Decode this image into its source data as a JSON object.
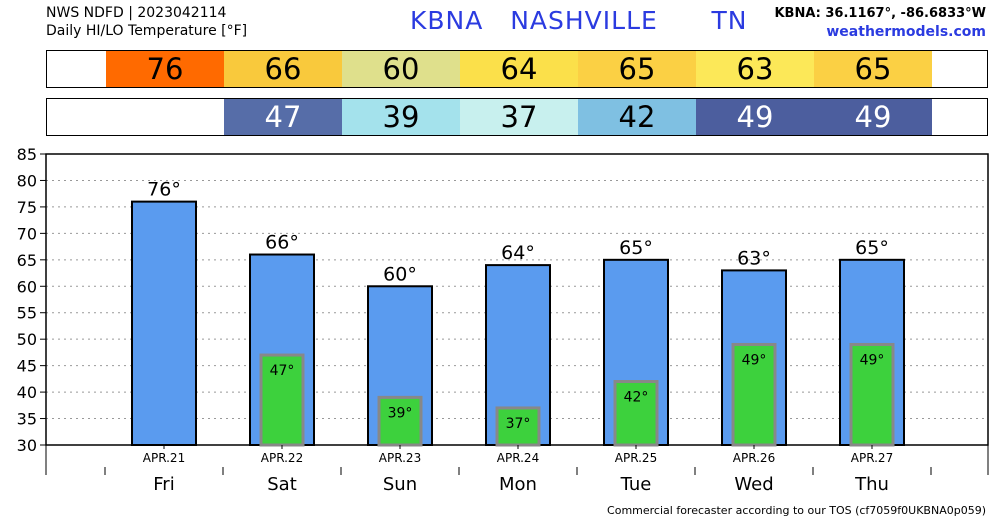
{
  "header": {
    "line1": "NWS NDFD | 2023042114",
    "line2": "Daily HI/LO Temperature [°F]",
    "station": "KBNA   NASHVILLE      TN",
    "coords": "KBNA: 36.1167°, -86.6833°W",
    "site": "weathermodels.com"
  },
  "hi_colors": [
    "#ff6a00",
    "#f9c93c",
    "#dfe08c",
    "#fbe04a",
    "#fbd044",
    "#fce858",
    "#fbd044"
  ],
  "lo_colors": [
    null,
    "#566da8",
    "#a4e2ec",
    "#c8f0ee",
    "#7fc0e2",
    "#4c5e9e",
    "#4c5e9e"
  ],
  "lo_text_colors": [
    null,
    "#ffffff",
    "#000000",
    "#000000",
    "#000000",
    "#ffffff",
    "#ffffff"
  ],
  "bar_color": "#5a9bef",
  "low_bar_color": "#3dd13d",
  "chart_data": {
    "type": "bar",
    "categories": [
      "Fri",
      "Sat",
      "Sun",
      "Mon",
      "Tue",
      "Wed",
      "Thu"
    ],
    "dates": [
      "APR.21",
      "APR.22",
      "APR.23",
      "APR.24",
      "APR.25",
      "APR.26",
      "APR.27"
    ],
    "series": [
      {
        "values": [
          76,
          66,
          60,
          64,
          65,
          63,
          65
        ]
      },
      {
        "values": [
          null,
          47,
          39,
          37,
          42,
          49,
          49
        ]
      }
    ],
    "ylim": [
      30,
      85
    ],
    "yticks": [
      30,
      35,
      40,
      45,
      50,
      55,
      60,
      65,
      70,
      75,
      80,
      85
    ],
    "grid": true,
    "degree_symbol": "°"
  },
  "footer": "Commercial forecaster according to our TOS (cf7059f0UKBNA0p059)"
}
